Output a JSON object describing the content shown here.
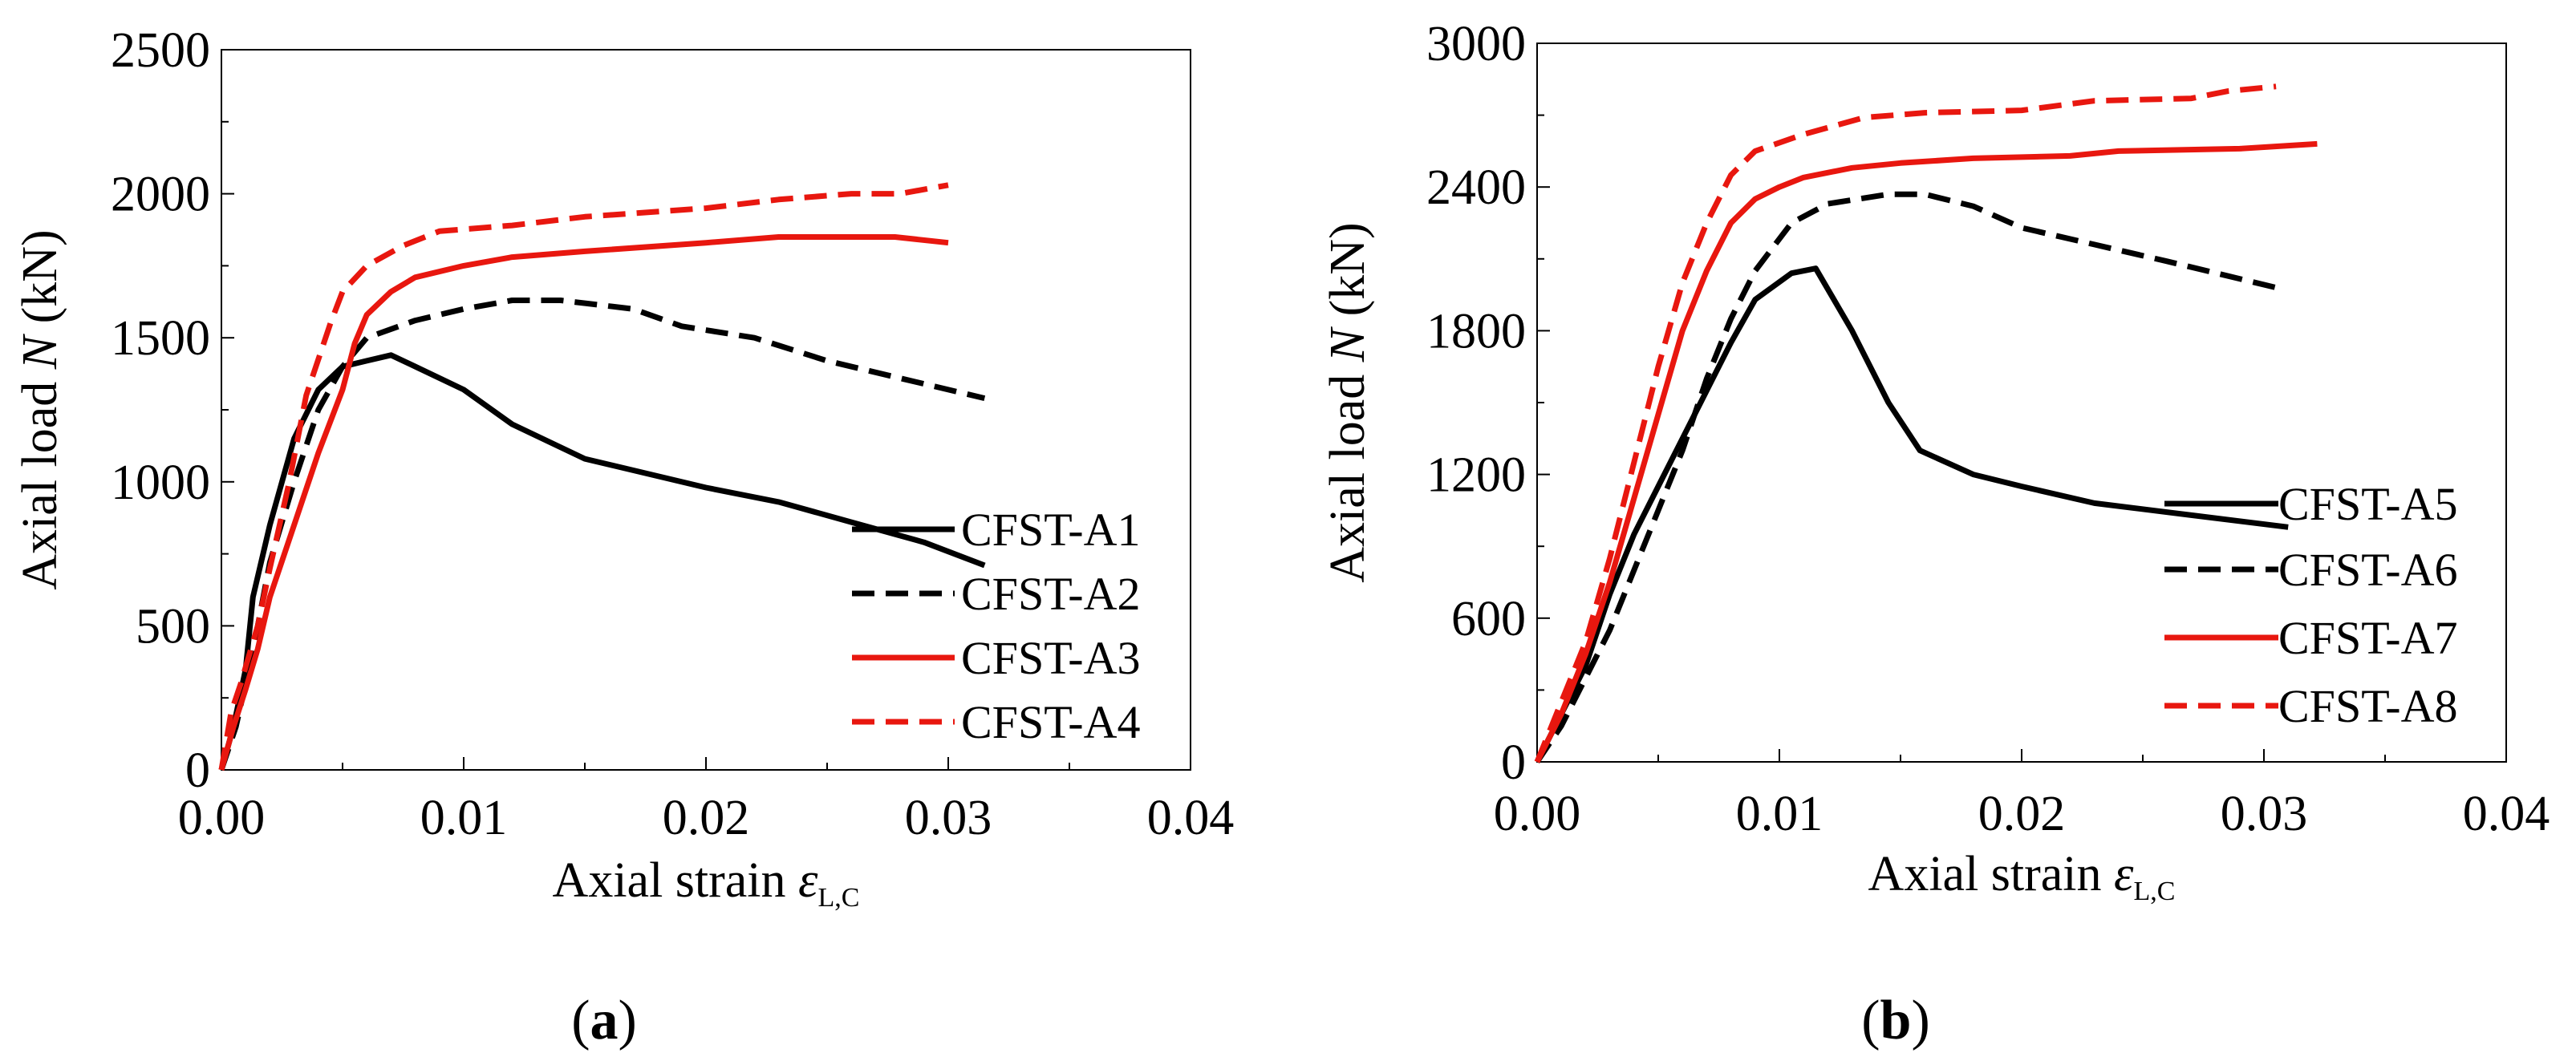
{
  "panels": [
    {
      "caption": "(a)",
      "caption_bold": "a"
    },
    {
      "caption": "(b)",
      "caption_bold": "b"
    }
  ],
  "chart_data": [
    {
      "type": "line",
      "panel": "(a)",
      "xlabel": "Axial strain ε",
      "xlabel_main": "Axial strain ",
      "xlabel_symbol": "ε",
      "xlabel_sub": "L,C",
      "ylabel": "Axial load N (kN)",
      "ylabel_pre": "Axial load ",
      "ylabel_italic": "N",
      "ylabel_post": " (kN)",
      "xlim": [
        0,
        0.04
      ],
      "ylim": [
        0,
        2500
      ],
      "xticks": [
        0,
        0.01,
        0.02,
        0.03,
        0.04
      ],
      "xtick_labels": [
        "0.00",
        "0.01",
        "0.02",
        "0.03",
        "0.04"
      ],
      "yticks": [
        0,
        500,
        1000,
        1500,
        2000,
        2500
      ],
      "ytick_labels": [
        "0",
        "500",
        "1000",
        "1500",
        "2000",
        "2500"
      ],
      "legend_position": "bottom-right",
      "series": [
        {
          "name": "CFST-A1",
          "color": "#000000",
          "dash": "solid",
          "points": [
            [
              0,
              0
            ],
            [
              0.0005,
              150
            ],
            [
              0.001,
              350
            ],
            [
              0.0013,
              600
            ],
            [
              0.002,
              850
            ],
            [
              0.003,
              1150
            ],
            [
              0.004,
              1320
            ],
            [
              0.005,
              1400
            ],
            [
              0.006,
              1420
            ],
            [
              0.007,
              1440
            ],
            [
              0.008,
              1400
            ],
            [
              0.01,
              1320
            ],
            [
              0.012,
              1200
            ],
            [
              0.015,
              1080
            ],
            [
              0.02,
              980
            ],
            [
              0.023,
              930
            ],
            [
              0.026,
              860
            ],
            [
              0.029,
              790
            ],
            [
              0.0315,
              710
            ]
          ]
        },
        {
          "name": "CFST-A2",
          "color": "#000000",
          "dash": "dashed",
          "points": [
            [
              0,
              0
            ],
            [
              0.0006,
              150
            ],
            [
              0.001,
              300
            ],
            [
              0.0015,
              500
            ],
            [
              0.002,
              720
            ],
            [
              0.003,
              1000
            ],
            [
              0.004,
              1250
            ],
            [
              0.005,
              1400
            ],
            [
              0.006,
              1500
            ],
            [
              0.008,
              1560
            ],
            [
              0.01,
              1600
            ],
            [
              0.012,
              1630
            ],
            [
              0.014,
              1630
            ],
            [
              0.017,
              1600
            ],
            [
              0.019,
              1540
            ],
            [
              0.022,
              1500
            ],
            [
              0.025,
              1420
            ],
            [
              0.028,
              1360
            ],
            [
              0.0315,
              1290
            ]
          ]
        },
        {
          "name": "CFST-A3",
          "color": "#e8170f",
          "dash": "solid",
          "points": [
            [
              0,
              0
            ],
            [
              0.0005,
              150
            ],
            [
              0.001,
              280
            ],
            [
              0.0015,
              420
            ],
            [
              0.002,
              600
            ],
            [
              0.003,
              850
            ],
            [
              0.004,
              1100
            ],
            [
              0.005,
              1320
            ],
            [
              0.0055,
              1480
            ],
            [
              0.006,
              1580
            ],
            [
              0.007,
              1660
            ],
            [
              0.008,
              1710
            ],
            [
              0.01,
              1750
            ],
            [
              0.012,
              1780
            ],
            [
              0.015,
              1800
            ],
            [
              0.02,
              1830
            ],
            [
              0.023,
              1850
            ],
            [
              0.0278,
              1850
            ],
            [
              0.03,
              1830
            ]
          ]
        },
        {
          "name": "CFST-A4",
          "color": "#e8170f",
          "dash": "dashed",
          "points": [
            [
              0,
              0
            ],
            [
              0.0004,
              200
            ],
            [
              0.0008,
              300
            ],
            [
              0.0015,
              500
            ],
            [
              0.002,
              700
            ],
            [
              0.0028,
              1000
            ],
            [
              0.0035,
              1300
            ],
            [
              0.0045,
              1550
            ],
            [
              0.005,
              1660
            ],
            [
              0.006,
              1750
            ],
            [
              0.0075,
              1820
            ],
            [
              0.009,
              1870
            ],
            [
              0.012,
              1890
            ],
            [
              0.015,
              1920
            ],
            [
              0.02,
              1950
            ],
            [
              0.023,
              1980
            ],
            [
              0.026,
              2000
            ],
            [
              0.028,
              2000
            ],
            [
              0.03,
              2030
            ]
          ]
        }
      ]
    },
    {
      "type": "line",
      "panel": "(b)",
      "xlabel": "Axial strain ε",
      "xlabel_main": "Axial strain ",
      "xlabel_symbol": "ε",
      "xlabel_sub": "L,C",
      "ylabel": "Axial load N (kN)",
      "ylabel_pre": "Axial load ",
      "ylabel_italic": "N",
      "ylabel_post": " (kN)",
      "xlim": [
        0,
        0.04
      ],
      "ylim": [
        0,
        3000
      ],
      "xticks": [
        0,
        0.01,
        0.02,
        0.03,
        0.04
      ],
      "xtick_labels": [
        "0.00",
        "0.01",
        "0.02",
        "0.03",
        "0.04"
      ],
      "yticks": [
        0,
        600,
        1200,
        1800,
        2400,
        3000
      ],
      "ytick_labels": [
        "0",
        "600",
        "1200",
        "1800",
        "2400",
        "3000"
      ],
      "legend_position": "bottom-right",
      "series": [
        {
          "name": "CFST-A5",
          "color": "#000000",
          "dash": "solid",
          "points": [
            [
              0,
              0
            ],
            [
              0.001,
              200
            ],
            [
              0.002,
              400
            ],
            [
              0.003,
              700
            ],
            [
              0.004,
              950
            ],
            [
              0.005,
              1150
            ],
            [
              0.006,
              1350
            ],
            [
              0.007,
              1550
            ],
            [
              0.008,
              1750
            ],
            [
              0.009,
              1930
            ],
            [
              0.0105,
              2040
            ],
            [
              0.0115,
              2060
            ],
            [
              0.013,
              1800
            ],
            [
              0.0145,
              1500
            ],
            [
              0.0158,
              1300
            ],
            [
              0.018,
              1200
            ],
            [
              0.02,
              1150
            ],
            [
              0.023,
              1080
            ],
            [
              0.027,
              1030
            ],
            [
              0.031,
              980
            ]
          ]
        },
        {
          "name": "CFST-A6",
          "color": "#000000",
          "dash": "dashed",
          "points": [
            [
              0,
              0
            ],
            [
              0.001,
              150
            ],
            [
              0.002,
              350
            ],
            [
              0.003,
              550
            ],
            [
              0.004,
              800
            ],
            [
              0.005,
              1050
            ],
            [
              0.006,
              1300
            ],
            [
              0.007,
              1600
            ],
            [
              0.008,
              1850
            ],
            [
              0.009,
              2050
            ],
            [
              0.0105,
              2250
            ],
            [
              0.012,
              2330
            ],
            [
              0.0145,
              2370
            ],
            [
              0.016,
              2370
            ],
            [
              0.018,
              2320
            ],
            [
              0.02,
              2230
            ],
            [
              0.023,
              2160
            ],
            [
              0.026,
              2090
            ],
            [
              0.0305,
              1980
            ]
          ]
        },
        {
          "name": "CFST-A7",
          "color": "#e8170f",
          "dash": "solid",
          "points": [
            [
              0,
              0
            ],
            [
              0.001,
              200
            ],
            [
              0.002,
              450
            ],
            [
              0.003,
              750
            ],
            [
              0.004,
              1100
            ],
            [
              0.005,
              1450
            ],
            [
              0.006,
              1800
            ],
            [
              0.007,
              2050
            ],
            [
              0.008,
              2250
            ],
            [
              0.009,
              2350
            ],
            [
              0.01,
              2400
            ],
            [
              0.011,
              2440
            ],
            [
              0.013,
              2480
            ],
            [
              0.015,
              2500
            ],
            [
              0.018,
              2520
            ],
            [
              0.022,
              2530
            ],
            [
              0.024,
              2550
            ],
            [
              0.029,
              2560
            ],
            [
              0.0322,
              2580
            ]
          ]
        },
        {
          "name": "CFST-A8",
          "color": "#e8170f",
          "dash": "dashed",
          "points": [
            [
              0,
              0
            ],
            [
              0.001,
              250
            ],
            [
              0.002,
              500
            ],
            [
              0.003,
              850
            ],
            [
              0.004,
              1250
            ],
            [
              0.005,
              1650
            ],
            [
              0.006,
              2000
            ],
            [
              0.007,
              2250
            ],
            [
              0.008,
              2450
            ],
            [
              0.009,
              2550
            ],
            [
              0.011,
              2620
            ],
            [
              0.0135,
              2690
            ],
            [
              0.016,
              2710
            ],
            [
              0.02,
              2720
            ],
            [
              0.023,
              2760
            ],
            [
              0.027,
              2770
            ],
            [
              0.0285,
              2800
            ],
            [
              0.0305,
              2820
            ]
          ]
        }
      ]
    }
  ]
}
